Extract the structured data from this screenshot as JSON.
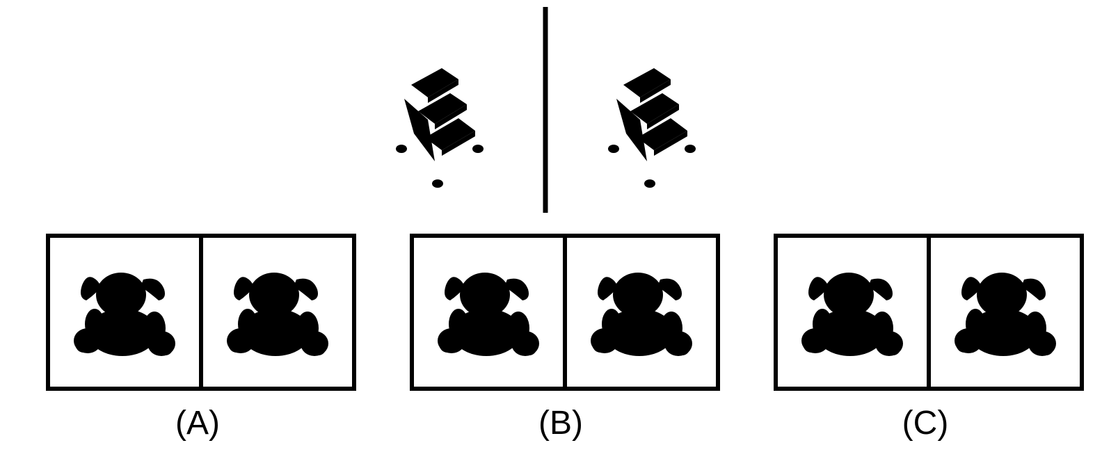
{
  "colors": {
    "stool_yellow": "#d8cf14",
    "stool_yellow_dark": "#9a9310",
    "stool_yellow_step": "#a8a20a",
    "stool_gray": "#7a7a7a",
    "stool_gray_dark": "#3a3a3a",
    "stool_gray_step": "#2a2a2a",
    "bear_red": "#e8584c",
    "bear_red_dark": "#b8201c",
    "bear_gray": "#c8c8c8",
    "bear_gray_dark": "#3c3c3c",
    "bear_blue": "#4a48d8",
    "bear_blue_dark": "#24208c",
    "frame": "#000000"
  },
  "example": {
    "left": {
      "object": "step-stool",
      "color": "stool_yellow"
    },
    "right": {
      "object": "step-stool",
      "color": "stool_gray"
    }
  },
  "options": [
    {
      "label": "(A)",
      "left": {
        "object": "teddy-bear",
        "color": "bear_red"
      },
      "right": {
        "object": "teddy-bear",
        "color": "bear_red"
      }
    },
    {
      "label": "(B)",
      "left": {
        "object": "teddy-bear",
        "color": "bear_red"
      },
      "right": {
        "object": "teddy-bear",
        "color": "bear_gray"
      }
    },
    {
      "label": "(C)",
      "left": {
        "object": "teddy-bear",
        "color": "bear_red"
      },
      "right": {
        "object": "teddy-bear",
        "color": "bear_blue"
      }
    }
  ]
}
